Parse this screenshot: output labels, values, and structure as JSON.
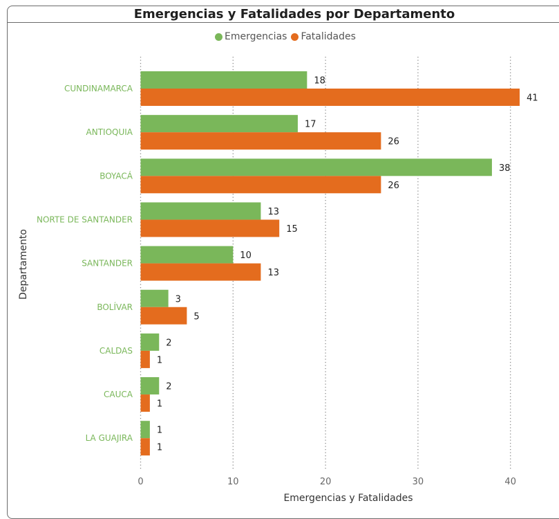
{
  "title": "Emergencias y Fatalidades por Departamento",
  "legend": [
    {
      "name": "Emergencias",
      "color": "#7ab75a"
    },
    {
      "name": "Fatalidades",
      "color": "#e46c1e"
    }
  ],
  "chart_data": {
    "type": "bar",
    "orientation": "horizontal",
    "title": "Emergencias y Fatalidades por Departamento",
    "xlabel": "Emergencias y Fatalidades",
    "ylabel": "Departamento",
    "xlim": [
      0,
      45
    ],
    "x_ticks": [
      0,
      10,
      20,
      30,
      40
    ],
    "grid": "vertical dotted",
    "legend_position": "top-center",
    "categories": [
      "CUNDINAMARCA",
      "ANTIOQUIA",
      "BOYACÁ",
      "NORTE DE SANTANDER",
      "SANTANDER",
      "BOLÍVAR",
      "CALDAS",
      "CAUCA",
      "LA GUAJIRA"
    ],
    "series": [
      {
        "name": "Emergencias",
        "color": "#7ab75a",
        "values": [
          18,
          17,
          38,
          13,
          10,
          3,
          2,
          2,
          1
        ]
      },
      {
        "name": "Fatalidades",
        "color": "#e46c1e",
        "values": [
          41,
          26,
          26,
          15,
          13,
          5,
          1,
          1,
          1
        ]
      }
    ]
  }
}
